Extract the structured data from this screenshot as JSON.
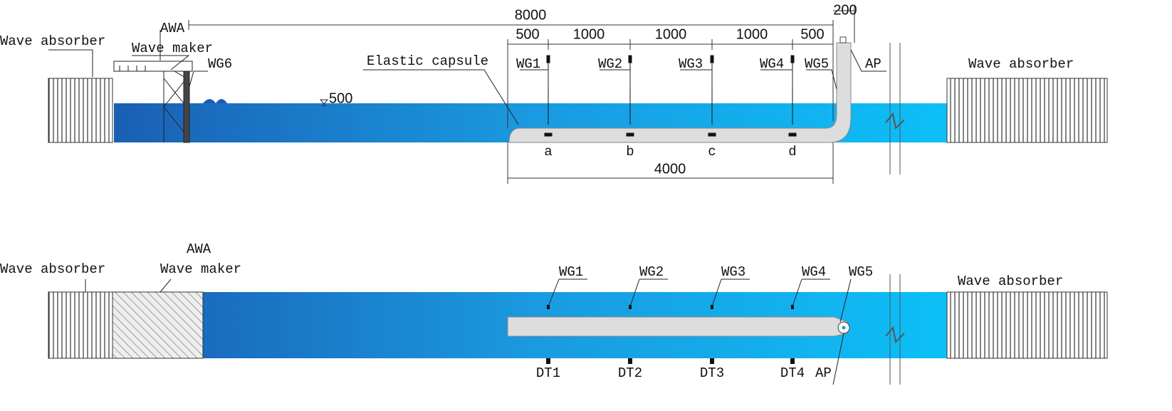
{
  "elevation": {
    "awa": "AWA",
    "left_absorber": "Wave absorber",
    "wave_maker": "Wave maker",
    "wg6": "WG6",
    "capsule": "Elastic capsule",
    "water_depth": "500",
    "ap": "AP",
    "right_absorber": "Wave absorber",
    "gauges": [
      "WG1",
      "WG2",
      "WG3",
      "WG4",
      "WG5"
    ],
    "points": [
      "a",
      "b",
      "c",
      "d"
    ],
    "dimensions": {
      "total": "8000",
      "ap_offset": "200",
      "spacing": [
        "500",
        "1000",
        "1000",
        "1000",
        "500"
      ],
      "capsule_length": "4000"
    }
  },
  "plan": {
    "awa": "AWA",
    "left_absorber": "Wave absorber",
    "wave_maker": "Wave maker",
    "right_absorber": "Wave absorber",
    "gauges": [
      "WG1",
      "WG2",
      "WG3",
      "WG4",
      "WG5"
    ],
    "sensors": [
      "DT1",
      "DT2",
      "DT3",
      "DT4"
    ],
    "ap": "AP"
  }
}
